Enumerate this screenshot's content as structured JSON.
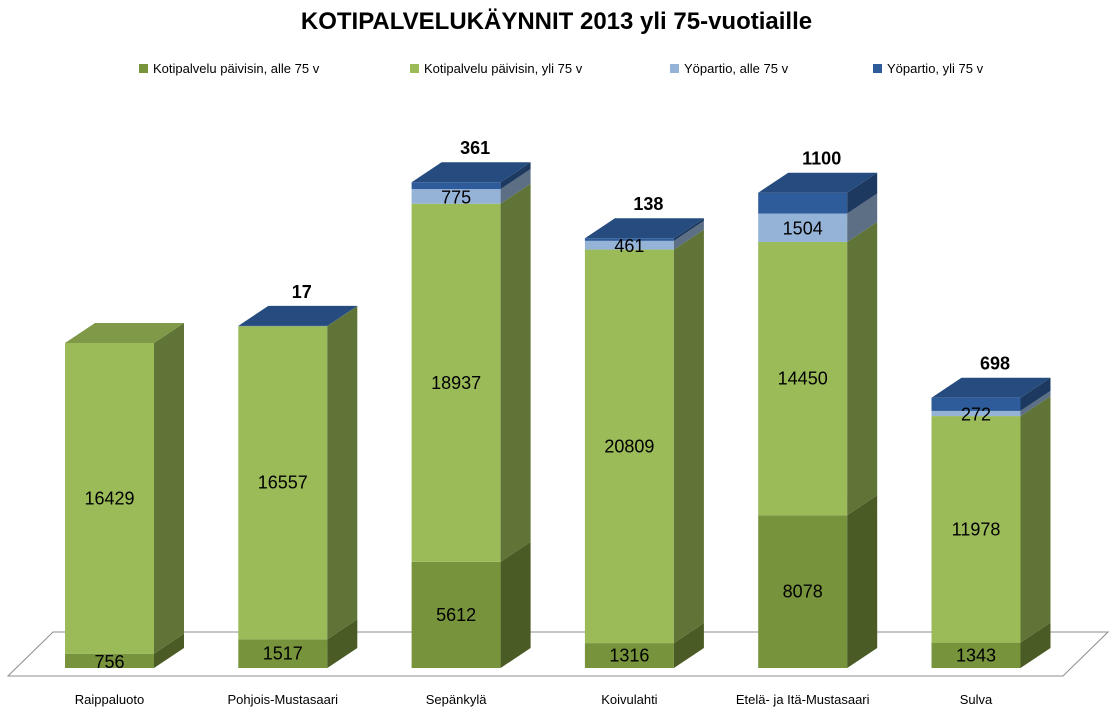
{
  "chart_data": {
    "type": "bar",
    "stacked": true,
    "three_d": true,
    "title": "KOTIPALVELUKÄYNNIT 2013 yli 75-vuotiaille",
    "legend_position": "top",
    "categories": [
      "Raippaluoto",
      "Pohjois-Mustasaari",
      "Sepänkylä",
      "Koivulahti",
      "Etelä- ja Itä-Mustasaari",
      "Sulva"
    ],
    "series": [
      {
        "name": "Kotipalvelu päivisin, alle 75 v",
        "color": "#77933C",
        "values": [
          756,
          1517,
          5612,
          1316,
          8078,
          1343
        ],
        "labels": [
          "756",
          "1517",
          "5612",
          "1316",
          "8078",
          "1343"
        ]
      },
      {
        "name": "Kotipalvelu päivisin, yli 75 v",
        "color": "#9BBB59",
        "values": [
          16429,
          16557,
          18937,
          20809,
          14450,
          11978
        ],
        "labels": [
          "16429",
          "16557",
          "18937",
          "20809",
          "14450",
          "11978"
        ]
      },
      {
        "name": "Yöpartio, alle 75 v",
        "color": "#95B3D7",
        "values": [
          0,
          0,
          775,
          461,
          1504,
          272
        ],
        "labels": [
          "",
          "",
          "775",
          "461",
          "1504",
          "272"
        ]
      },
      {
        "name": "Yöpartio, yli 75 v",
        "color": "#2E5C9A",
        "values": [
          0,
          17,
          361,
          138,
          1100,
          698
        ],
        "labels": [
          "",
          "17",
          "361",
          "138",
          "1100",
          "698"
        ]
      }
    ],
    "ylim": [
      0,
      26000
    ],
    "xlabel": "",
    "ylabel": "",
    "grid": false
  }
}
